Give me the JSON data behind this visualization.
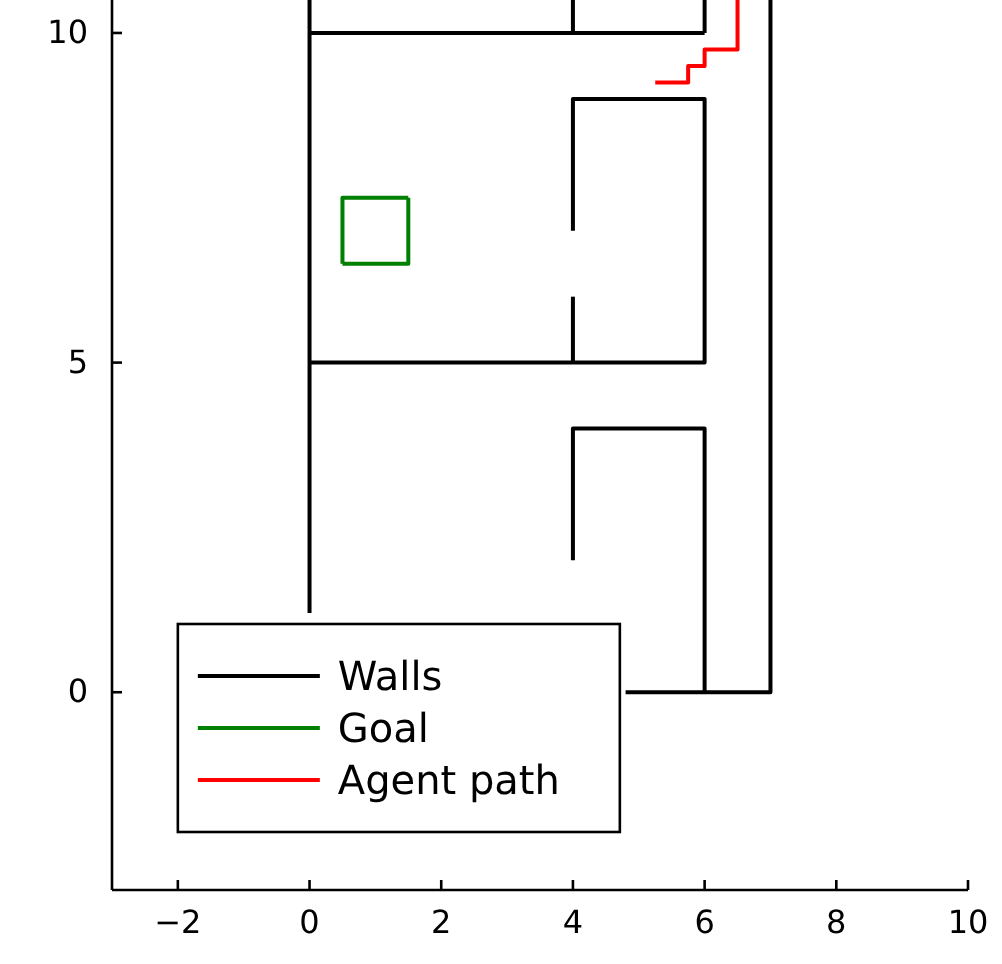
{
  "chart_data": {
    "type": "line",
    "xlim": [
      -3,
      10
    ],
    "ylim": [
      -3,
      10.5
    ],
    "xticks": [
      -2,
      0,
      2,
      4,
      6,
      8,
      10
    ],
    "yticks": [
      0,
      5,
      10
    ],
    "grid": false,
    "legend": "bottom left",
    "series": [
      {
        "name": "Walls",
        "color": "#000000",
        "x": [
          0,
          0
        ],
        "values": [
          10.5,
          1.2
        ]
      },
      {
        "color": "#000000",
        "x": [
          0,
          6
        ],
        "values": [
          10,
          10
        ]
      },
      {
        "color": "#000000",
        "x": [
          4,
          4
        ],
        "values": [
          10.5,
          10
        ]
      },
      {
        "color": "#000000",
        "x": [
          6,
          6
        ],
        "values": [
          10.5,
          10
        ]
      },
      {
        "color": "#000000",
        "x": [
          7,
          7,
          4.8
        ],
        "values": [
          10.5,
          0,
          0
        ]
      },
      {
        "color": "#000000",
        "x": [
          4,
          4,
          6,
          6,
          0
        ],
        "values": [
          7,
          9,
          9,
          5,
          5
        ]
      },
      {
        "color": "#000000",
        "x": [
          4,
          4
        ],
        "values": [
          6,
          5
        ]
      },
      {
        "color": "#000000",
        "x": [
          4,
          4,
          6,
          6
        ],
        "values": [
          2,
          4,
          4,
          0
        ]
      },
      {
        "name": "Goal",
        "color": "#008000",
        "x": [
          0.5,
          1.5,
          1.5
        ],
        "values": [
          6.5,
          6.5,
          7.5
        ]
      },
      {
        "color": "#008000",
        "x": [
          1.5,
          0.5,
          0.5
        ],
        "values": [
          7.5,
          7.5,
          6.5
        ]
      },
      {
        "name": "Agent path",
        "color": "#ff0000",
        "x": [
          5.25,
          5.75,
          5.75,
          6,
          6,
          6.5,
          6.5
        ],
        "values": [
          9.25,
          9.25,
          9.5,
          9.5,
          9.75,
          9.75,
          10.5
        ]
      }
    ]
  }
}
